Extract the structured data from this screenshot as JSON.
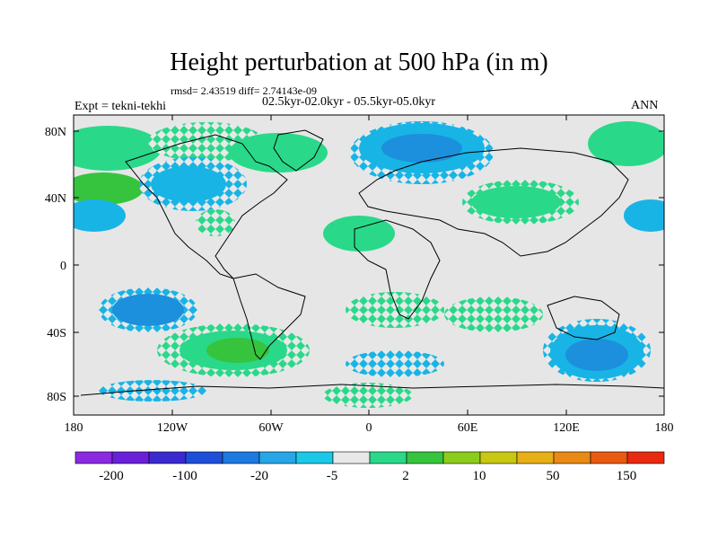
{
  "title": "Height perturbation at 500 hPa (in m)",
  "stats": "rmsd= 2.43519  diff= 2.74143e-09",
  "period": "02.5kyr-02.0kyr - 05.5kyr-05.0kyr",
  "experiment": "Expt = tekni-tekhi",
  "season": "ANN",
  "lat_labels": [
    "80N",
    "40N",
    "0",
    "40S",
    "80S"
  ],
  "lon_labels": [
    "180",
    "120W",
    "60W",
    "0",
    "60E",
    "120E",
    "180"
  ],
  "colorbar": {
    "colors": [
      "#8a2be2",
      "#6a20d8",
      "#3a2ad0",
      "#1e4fd8",
      "#1c7ae0",
      "#26a6e6",
      "#1cc8e8",
      "#e8e8e8",
      "#2ad88a",
      "#36c43e",
      "#8ccc1c",
      "#c8c812",
      "#e8b018",
      "#e88a14",
      "#e85a12",
      "#e82a10"
    ],
    "labels": [
      "-200",
      "-100",
      "-20",
      "-5",
      "2",
      "10",
      "50",
      "150"
    ]
  },
  "colors": {
    "land_bg": "#e6e6e6",
    "coast": "#000000",
    "neg_small": "#18b4e6",
    "neg_mid": "#1c90dc",
    "pos_small": "#2ad88a",
    "pos_mid": "#36c43e"
  }
}
